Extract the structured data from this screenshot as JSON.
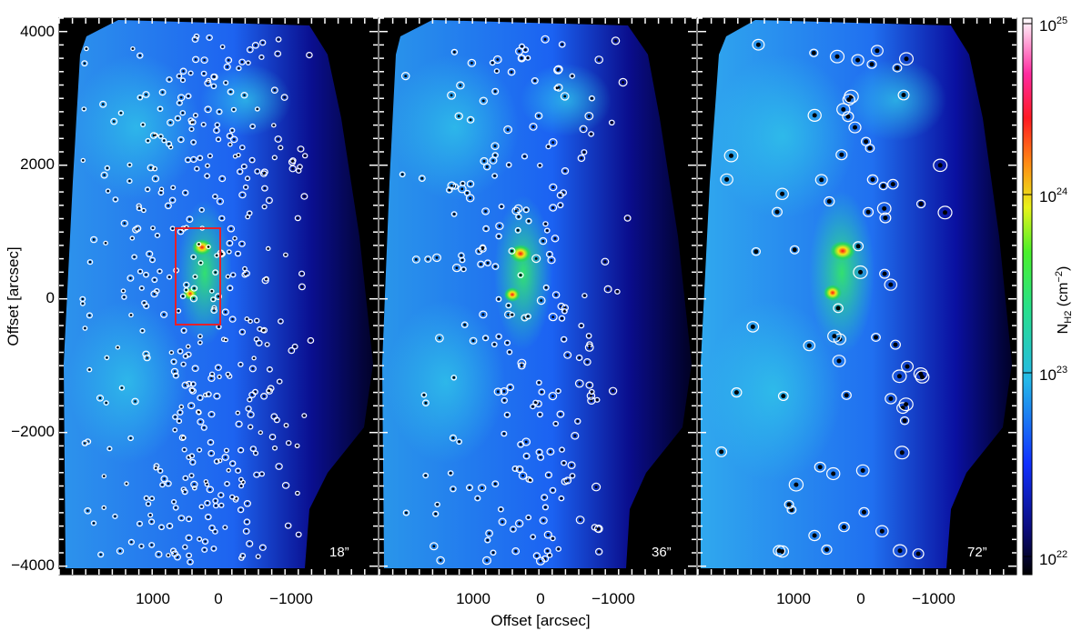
{
  "figure": {
    "y_axis_label": "Offset [arcsec]",
    "x_axis_label": "Offset [arcsec]",
    "y_ticks": [
      "4000",
      "2000",
      "0",
      "−2000",
      "−4000"
    ],
    "x_ticks": [
      "1000",
      "0",
      "−1000"
    ],
    "panels": [
      {
        "id": "panel-18",
        "resolution_label": "18”"
      },
      {
        "id": "panel-36",
        "resolution_label": "36”"
      },
      {
        "id": "panel-72",
        "resolution_label": "72”"
      }
    ],
    "colorbar": {
      "label_main": "N",
      "label_sub": "H2",
      "label_unit": " (cm",
      "label_exp": "−2",
      "label_close": ")",
      "ticks": [
        {
          "base": "10",
          "exp": "25"
        },
        {
          "base": "10",
          "exp": "24"
        },
        {
          "base": "10",
          "exp": "23"
        },
        {
          "base": "10",
          "exp": "22"
        }
      ]
    },
    "colors": {
      "background": "#000000",
      "low": "#000033",
      "mid_blue": "#0a37ff",
      "cyan": "#2aa0f0",
      "green": "#2cd65a",
      "yellow": "#f5f51e",
      "red": "#ff1a1a",
      "box": "#e8202a",
      "contours": "#ffffff"
    }
  }
}
